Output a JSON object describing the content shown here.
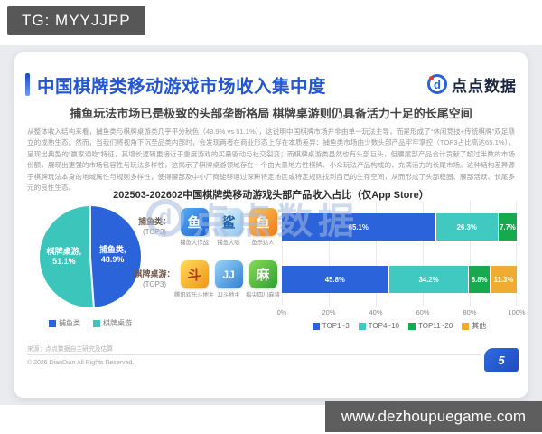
{
  "badge": {
    "text": "TG: MYYJJPP"
  },
  "header": {
    "title": "中国棋牌类移动游戏市场收入集中度",
    "accent_color": "#2256d5",
    "logo_text": "点点数据",
    "logo_letter": "d"
  },
  "subtitle": "捕鱼玩法市场已是极致的头部垄断格局 棋牌桌游则仍具备活力十足的长尾空间",
  "paragraph": "从整体收入结构来看，捕鱼类与棋牌桌游类几乎平分秋色（48.9% vs 51.1%），这说明中国棋牌市场并非由单一玩法主导，而是形成了“休闲竞技+传统棋牌”双足鼎立的成熟生态。然而，当我们将视角下沉至品类内部时，会发现两者在商业形态上存在本质差异：捕鱼类市场由少数头部产品牢牢掌控（TOP3占比高达65.1%），呈现出典型的“赢家通吃”特征，其增长逻辑更接近于重度游戏的买量驱动与社交裂变；而棋牌桌游类虽然也有头部巨头，但腰尾部产品合计贡献了超过半数的市场份额，展现出更强的市场包容性与玩法多样性，这揭示了棋牌桌游领域存在一个由大量地方性棋牌、小众玩法产品构成的、充满活力的长尾市场。这种结构差异源于棋牌玩法本身的地域属性与规则多样性，使得腰部及中小厂商能够通过深耕特定地区或特定规则找到自己的生存空间，从而形成了头部稳固、腰部活跃、长尾多元的良性生态。",
  "chart_title": "202503-202602中国棋牌类移动游戏头部产品收入占比（仅App Store）",
  "chart_data": [
    {
      "type": "pie",
      "title": "捕鱼类 vs 棋牌桌游 收入占比",
      "slices": [
        {
          "label": "捕鱼类",
          "value": 48.9,
          "color": "#2b63da"
        },
        {
          "label": "棋牌桌游",
          "value": 51.1,
          "color": "#3cc6bb"
        }
      ],
      "legend_position": "bottom"
    },
    {
      "type": "bar",
      "orientation": "horizontal-stacked",
      "xlim": [
        0,
        100
      ],
      "x_ticks": [
        "0%",
        "20%",
        "40%",
        "60%",
        "80%",
        "100%"
      ],
      "grid": true,
      "legend_position": "bottom",
      "legend": [
        {
          "name": "TOP1~3",
          "color": "#2b63da"
        },
        {
          "name": "TOP4~10",
          "color": "#3fc9c0"
        },
        {
          "name": "TOP11~20",
          "color": "#17a94d"
        },
        {
          "name": "其他",
          "color": "#f0ac32"
        }
      ],
      "rows": [
        {
          "label": "捕鱼类：",
          "sublabel": "(TOP3)",
          "apps": [
            {
              "name": "捕鱼大作战",
              "icon": "buyu-dazuozhan"
            },
            {
              "name": "捕鱼大咖",
              "icon": "buyu-daka"
            },
            {
              "name": "鱼乐达人",
              "icon": "yule-daren"
            }
          ],
          "segments": [
            {
              "series": "TOP1~3",
              "value": 65.1
            },
            {
              "series": "TOP4~10",
              "value": 26.3
            },
            {
              "series": "TOP11~20",
              "value": 7.7
            }
          ]
        },
        {
          "label": "棋牌桌游：",
          "sublabel": "(TOP3)",
          "apps": [
            {
              "name": "腾讯欢乐斗地主",
              "icon": "huanle-doudizhu"
            },
            {
              "name": "JJ斗地主",
              "icon": "jj-doudizhu"
            },
            {
              "name": "指尖四川麻将",
              "icon": "sichuan-mahjong"
            }
          ],
          "segments": [
            {
              "series": "TOP1~3",
              "value": 45.8
            },
            {
              "series": "TOP4~10",
              "value": 34.2
            },
            {
              "series": "TOP11~20",
              "value": 8.8
            },
            {
              "series": "其他",
              "value": 11.3
            }
          ]
        }
      ]
    }
  ],
  "watermark": {
    "text": "点点数据",
    "letter": "d"
  },
  "footer": {
    "source": "来源：点点数据自主研究及估算",
    "copyright": "© 2026 DianDian All Rights Reserved.",
    "page_number": "5"
  },
  "site_bar": {
    "url": "www.dezhoupuegame.com"
  }
}
